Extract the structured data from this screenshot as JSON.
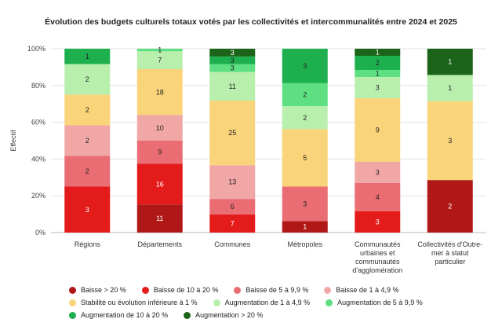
{
  "chart_data": {
    "type": "bar",
    "stacked": "percent",
    "title": "Évolution des budgets culturels totaux votés par les collectivités et intercommunalités entre 2024 et 2025",
    "ylabel": "Effectif",
    "yticks": [
      "0%",
      "20%",
      "40%",
      "60%",
      "80%",
      "100%"
    ],
    "ylim": [
      0,
      100
    ],
    "grid": true,
    "legend_position": "bottom",
    "categories": [
      [
        "Régions"
      ],
      [
        "Départements"
      ],
      [
        "Communes"
      ],
      [
        "Métropoles"
      ],
      [
        "Communautés",
        "urbaines et",
        "communautés",
        "d'agglomération"
      ],
      [
        "Collectivités d'Outre-",
        "mer à statut",
        "particulier"
      ]
    ],
    "series": [
      {
        "name": "Baisse > 20 %",
        "color": "#b01818",
        "text_color": "#ffffff",
        "values": [
          0,
          11,
          0,
          1,
          0,
          2
        ]
      },
      {
        "name": "Baisse de 10 à 20 %",
        "color": "#e41b1b",
        "text_color": "#ffffff",
        "values": [
          3,
          16,
          7,
          0,
          3,
          0
        ]
      },
      {
        "name": "Baisse de 5 à 9,9 %",
        "color": "#ea6d74",
        "text_color": "#222222",
        "values": [
          2,
          9,
          6,
          3,
          4,
          0
        ]
      },
      {
        "name": "Baisse de 1 à 4,9 %",
        "color": "#f2a7a7",
        "text_color": "#222222",
        "values": [
          2,
          10,
          13,
          0,
          3,
          0
        ]
      },
      {
        "name": "Stabilité ou évolution inférieure à 1 %",
        "color": "#fad47a",
        "text_color": "#222222",
        "values": [
          2,
          18,
          25,
          5,
          9,
          3
        ]
      },
      {
        "name": "Augmentation de 1 à 4,9 %",
        "color": "#b8efad",
        "text_color": "#222222",
        "values": [
          2,
          7,
          11,
          2,
          3,
          1
        ]
      },
      {
        "name": "Augmentation de 5 à 9,9 %",
        "color": "#5ee082",
        "text_color": "#222222",
        "values": [
          0,
          1,
          3,
          2,
          1,
          0
        ]
      },
      {
        "name": "Augmentation de 10 à 20 %",
        "color": "#1eaf4f",
        "text_color": "#222222",
        "values": [
          1,
          0,
          3,
          3,
          2,
          0
        ]
      },
      {
        "name": "Augmentation > 20 %",
        "color": "#1c6419",
        "text_color": "#ffffff",
        "values": [
          0,
          0,
          3,
          0,
          1,
          1
        ]
      }
    ],
    "legend_rows": [
      [
        0,
        1,
        2,
        3
      ],
      [
        4,
        5,
        6
      ],
      [
        7,
        8
      ]
    ]
  }
}
